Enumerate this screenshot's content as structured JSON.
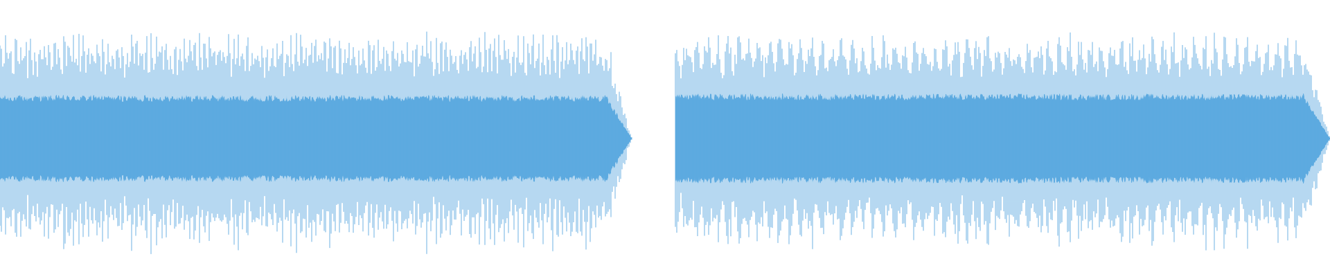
{
  "waveform": {
    "colors": {
      "background": "#ffffff",
      "wave": "#5daae0"
    },
    "tracks": [
      {
        "id": "segment-1",
        "start_fraction": 0.0,
        "end_fraction": 0.475
      },
      {
        "id": "segment-2",
        "start_fraction": 0.508,
        "end_fraction": 1.0
      }
    ]
  }
}
